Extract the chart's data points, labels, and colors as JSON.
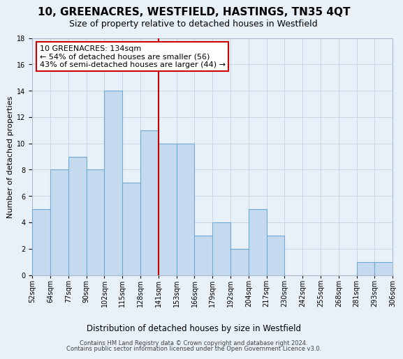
{
  "title": "10, GREENACRES, WESTFIELD, HASTINGS, TN35 4QT",
  "subtitle": "Size of property relative to detached houses in Westfield",
  "xlabel_bottom": "Distribution of detached houses by size in Westfield",
  "ylabel": "Number of detached properties",
  "footnote1": "Contains HM Land Registry data © Crown copyright and database right 2024.",
  "footnote2": "Contains public sector information licensed under the Open Government Licence v3.0.",
  "bin_labels": [
    "52sqm",
    "64sqm",
    "77sqm",
    "90sqm",
    "102sqm",
    "115sqm",
    "128sqm",
    "141sqm",
    "153sqm",
    "166sqm",
    "179sqm",
    "192sqm",
    "204sqm",
    "217sqm",
    "230sqm",
    "242sqm",
    "255sqm",
    "268sqm",
    "281sqm",
    "293sqm",
    "306sqm"
  ],
  "bar_values": [
    5,
    8,
    9,
    8,
    14,
    7,
    11,
    10,
    10,
    3,
    4,
    2,
    5,
    3,
    0,
    0,
    0,
    0,
    1,
    1
  ],
  "bar_color": "#c5d9ef",
  "bar_edge_color": "#6aaad4",
  "red_line_bin_index": 7,
  "ylim": [
    0,
    18
  ],
  "yticks": [
    0,
    2,
    4,
    6,
    8,
    10,
    12,
    14,
    16,
    18
  ],
  "annotation_text": "10 GREENACRES: 134sqm\n← 54% of detached houses are smaller (56)\n43% of semi-detached houses are larger (44) →",
  "annotation_box_color": "#ffffff",
  "annotation_box_edge": "#cc0000",
  "bg_color": "#e8f0f8",
  "grid_color": "#c8d8e8",
  "title_fontsize": 11,
  "subtitle_fontsize": 9,
  "ylabel_fontsize": 8,
  "tick_fontsize": 7,
  "annotation_fontsize": 8
}
